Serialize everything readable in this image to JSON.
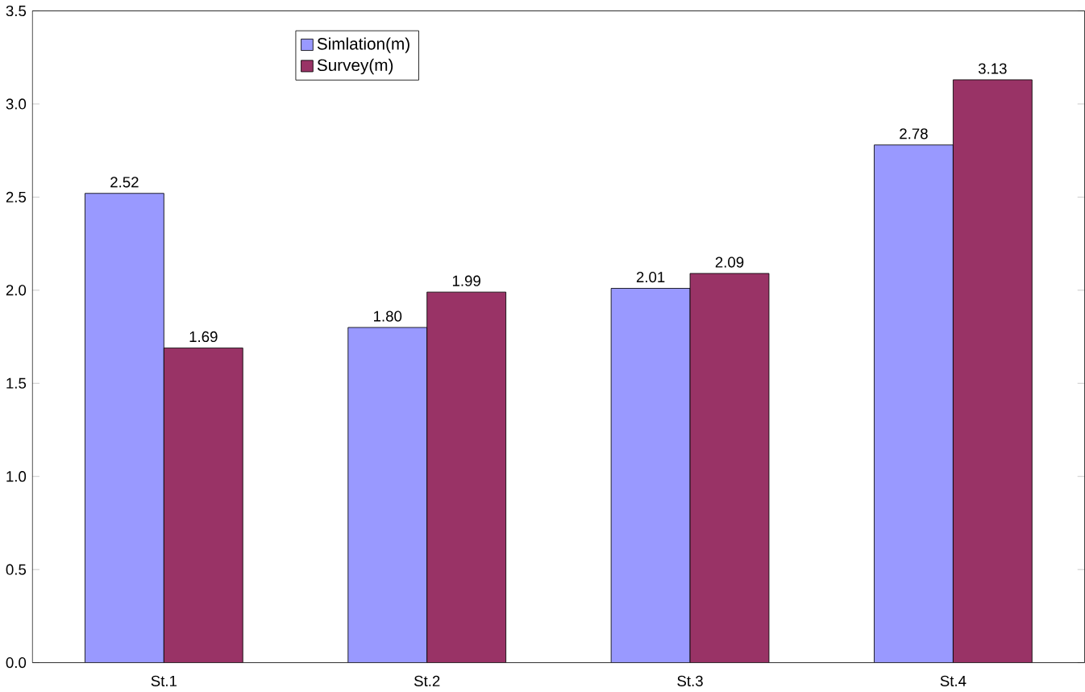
{
  "chart_data": {
    "type": "bar",
    "categories": [
      "St.1",
      "St.2",
      "St.3",
      "St.4"
    ],
    "series": [
      {
        "name": "Simlation(m)",
        "color": "#9999ff",
        "values": [
          2.52,
          1.8,
          2.01,
          2.78
        ],
        "value_labels": [
          "2.52",
          "1.80",
          "2.01",
          "2.78"
        ]
      },
      {
        "name": "Survey(m)",
        "color": "#993366",
        "values": [
          1.69,
          1.99,
          2.09,
          3.13
        ],
        "value_labels": [
          "1.69",
          "1.99",
          "2.09",
          "3.13"
        ]
      }
    ],
    "ylim": [
      0,
      3.5
    ],
    "yticks": [
      {
        "value": 0,
        "label": "0.0"
      },
      {
        "value": 0.5,
        "label": "0.5"
      },
      {
        "value": 1,
        "label": "1.0"
      },
      {
        "value": 1.5,
        "label": "1.5"
      },
      {
        "value": 2,
        "label": "2.0"
      },
      {
        "value": 2.5,
        "label": "2.5"
      },
      {
        "value": 3,
        "label": "3.0"
      },
      {
        "value": 3.5,
        "label": "3.5"
      }
    ],
    "legend": "top left",
    "grid": false
  }
}
